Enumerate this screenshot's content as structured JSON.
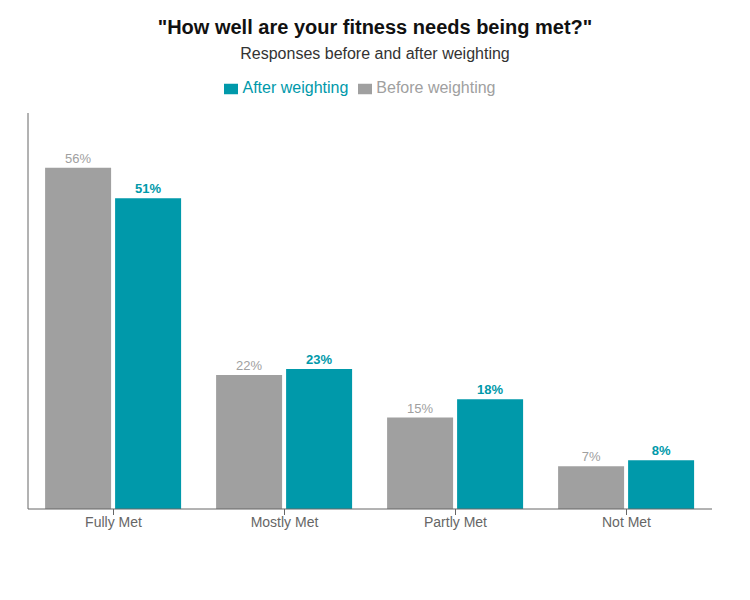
{
  "chart_data": {
    "type": "bar",
    "title": "\"How well are your fitness needs being met?\"",
    "subtitle": "Responses before and after weighting",
    "categories": [
      "Fully Met",
      "Mostly Met",
      "Partly Met",
      "Not Met"
    ],
    "series": [
      {
        "name": "Before weighting",
        "color": "#a0a0a0",
        "values": [
          56,
          22,
          15,
          7
        ],
        "value_labels": [
          "56%",
          "22%",
          "15%",
          "7%"
        ]
      },
      {
        "name": "After weighting",
        "color": "#0099aa",
        "values": [
          51,
          23,
          18,
          8
        ],
        "value_labels": [
          "51%",
          "23%",
          "18%",
          "8%"
        ]
      }
    ],
    "ylim": [
      0,
      65
    ],
    "grid": false,
    "legend": "top",
    "data_labels": true,
    "tick_labels": "x"
  }
}
